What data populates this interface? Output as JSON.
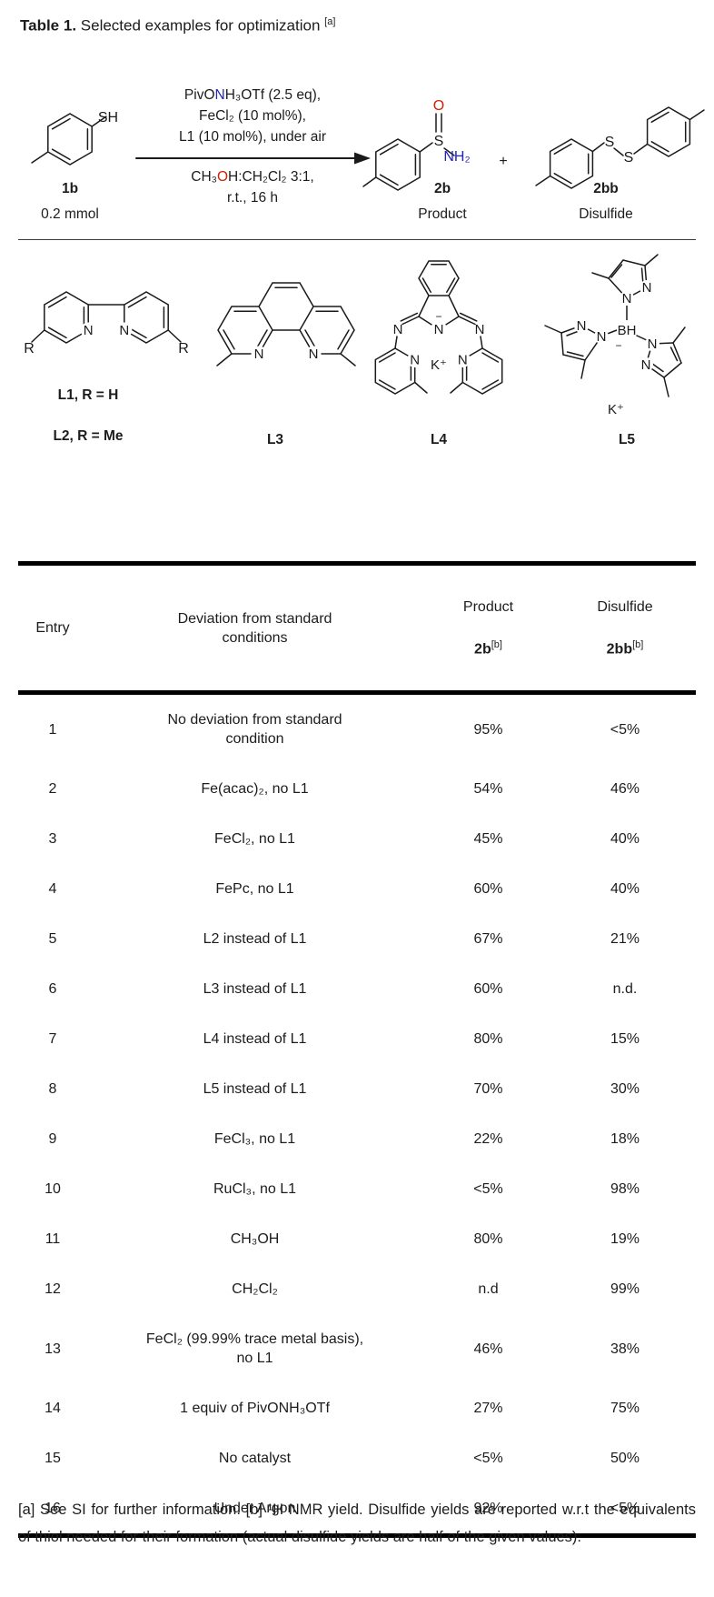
{
  "title": {
    "bold": "Table 1.",
    "text": " Selected examples for optimization ",
    "sup": "[a]"
  },
  "scheme": {
    "colors": {
      "nitrogen": "#2323bb",
      "oxygen": "#cc2200"
    },
    "reactant_label": "1b",
    "reactant_amount": "0.2 mmol",
    "atoms": {
      "sh": "SH",
      "s": "S",
      "o": "O",
      "nh2": "NH₂",
      "s1": "S",
      "s2": "S"
    },
    "conditions_above": {
      "l1_pre": "PivO",
      "l1_n": "N",
      "l1_post": "H₃OTf (2.5 eq),",
      "l2": "FeCl₂ (10 mol%),",
      "l3": "L1 (10 mol%), under air"
    },
    "conditions_below": {
      "l4_pre": "CH₃",
      "l4_o": "O",
      "l4_post": "H:CH₂Cl₂ 3:1,",
      "l5": "r.t., 16 h"
    },
    "product_label": "2b",
    "product_caption": "Product",
    "plus": "+",
    "disulfide_label": "2bb",
    "disulfide_caption": "Disulfide"
  },
  "ligands": {
    "l1": "L1, R = H",
    "l2": "L2, R = Me",
    "l3": "L3",
    "l4": "L4",
    "l5": "L5",
    "atoms": {
      "n": "N",
      "r": "R",
      "k": "K⁺",
      "minus": "−",
      "bh": "BH"
    }
  },
  "table": {
    "col_entry": "Entry",
    "col_deviation": "Deviation from standard\nconditions",
    "col_product_top": "Product",
    "col_product_bold": "2b",
    "col_product_sup": "[b]",
    "col_disulfide_top": "Disulfide",
    "col_disulfide_bold": "2bb",
    "col_disulfide_sup": "[b]",
    "rows": [
      {
        "entry": "1",
        "deviation": "No deviation from standard\ncondition",
        "product": "95%",
        "disulfide": "<5%"
      },
      {
        "entry": "2",
        "deviation": "Fe(acac)₂, no L1",
        "product": "54%",
        "disulfide": "46%"
      },
      {
        "entry": "3",
        "deviation": "FeCl₂, no L1",
        "product": "45%",
        "disulfide": "40%"
      },
      {
        "entry": "4",
        "deviation": "FePc, no L1",
        "product": "60%",
        "disulfide": "40%"
      },
      {
        "entry": "5",
        "deviation": "L2 instead of L1",
        "product": "67%",
        "disulfide": "21%"
      },
      {
        "entry": "6",
        "deviation": "L3 instead of L1",
        "product": "60%",
        "disulfide": "n.d."
      },
      {
        "entry": "7",
        "deviation": "L4 instead of L1",
        "product": "80%",
        "disulfide": "15%"
      },
      {
        "entry": "8",
        "deviation": "L5 instead of L1",
        "product": "70%",
        "disulfide": "30%"
      },
      {
        "entry": "9",
        "deviation": "FeCl₃, no L1",
        "product": "22%",
        "disulfide": "18%"
      },
      {
        "entry": "10",
        "deviation": "RuCl₃, no L1",
        "product": "<5%",
        "disulfide": "98%"
      },
      {
        "entry": "11",
        "deviation": "CH₃OH",
        "product": "80%",
        "disulfide": "19%"
      },
      {
        "entry": "12",
        "deviation": "CH₂Cl₂",
        "product": "n.d",
        "disulfide": "99%"
      },
      {
        "entry": "13",
        "deviation": "FeCl₂ (99.99% trace metal basis),\nno L1",
        "product": "46%",
        "disulfide": "38%"
      },
      {
        "entry": "14",
        "deviation": "1 equiv of PivONH₃OTf",
        "product": "27%",
        "disulfide": "75%"
      },
      {
        "entry": "15",
        "deviation": "No catalyst",
        "product": "<5%",
        "disulfide": "50%"
      },
      {
        "entry": "16",
        "deviation": "Under Argon",
        "product": "92%",
        "disulfide": "<5%"
      }
    ]
  },
  "footnote": "[a] See SI for further information. [b] ¹H NMR yield. Disulfide yields are reported w.r.t the equivalents of thiol needed for their formation (actual disulfide yields are half of the given values)."
}
